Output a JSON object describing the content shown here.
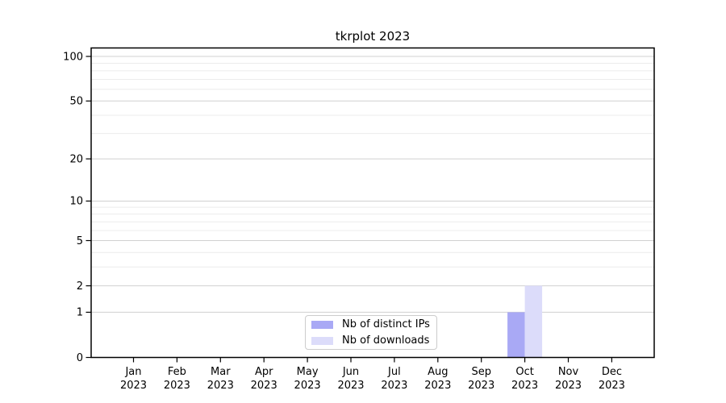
{
  "chart_data": {
    "type": "bar",
    "title": "tkrplot 2023",
    "categories": [
      "Jan",
      "Feb",
      "Mar",
      "Apr",
      "May",
      "Jun",
      "Jul",
      "Aug",
      "Sep",
      "Oct",
      "Nov",
      "Dec"
    ],
    "x_tick_year": "2023",
    "series": [
      {
        "name": "Nb of distinct IPs",
        "color": "#a9a9f5",
        "values": [
          0,
          0,
          0,
          0,
          0,
          0,
          0,
          0,
          0,
          1,
          0,
          0
        ]
      },
      {
        "name": "Nb of downloads",
        "color": "#dcdcfa",
        "values": [
          0,
          0,
          0,
          0,
          0,
          0,
          0,
          0,
          0,
          2,
          0,
          0
        ]
      }
    ],
    "y_ticks": [
      0,
      1,
      2,
      5,
      10,
      20,
      50,
      100
    ],
    "y_minor_ticks": [
      3,
      4,
      6,
      7,
      8,
      9,
      30,
      40,
      60,
      70,
      80,
      90
    ],
    "scale": "log1p",
    "ylim": [
      0,
      100
    ],
    "grid": true,
    "legend_position": "lower center",
    "colors": {
      "axis": "#000000",
      "grid_major": "#d0d0d0",
      "grid_minor": "#ececec",
      "legend_border": "#cccccc",
      "text": "#000000"
    }
  }
}
